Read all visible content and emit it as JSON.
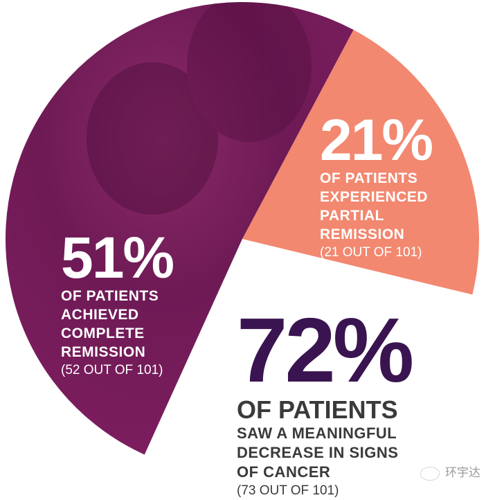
{
  "chart_data": {
    "type": "pie",
    "slices": [
      {
        "label": "OF PATIENTS ACHIEVED COMPLETE REMISSION",
        "value": 51,
        "count": "(52 OUT OF 101)",
        "color": "#7a1b5c"
      },
      {
        "label": "OF PATIENTS EXPERIENCED PARTIAL REMISSION",
        "value": 21,
        "count": "(21 OUT OF 101)",
        "color": "#f28870"
      }
    ],
    "background_photo": "couple embracing, purple duotone"
  },
  "labels": {
    "complete": {
      "pct": "51%",
      "lines": [
        "OF PATIENTS",
        "ACHIEVED",
        "COMPLETE",
        "REMISSION"
      ],
      "count": "(52 OUT OF 101)"
    },
    "partial": {
      "pct": "21%",
      "lines": [
        "OF PATIENTS",
        "EXPERIENCED",
        "PARTIAL",
        "REMISSION"
      ],
      "count": "(21 OUT OF 101)"
    },
    "meaningful": {
      "pct": "72%",
      "head": "OF PATIENTS",
      "lines": [
        "SAW A MEANINGFUL",
        "DECREASE IN SIGNS",
        "OF CANCER"
      ],
      "count": "(73 OUT OF 101)",
      "color": "#3a1450"
    }
  },
  "watermark": {
    "icon": "wechat-icon",
    "text": "环宇达"
  }
}
